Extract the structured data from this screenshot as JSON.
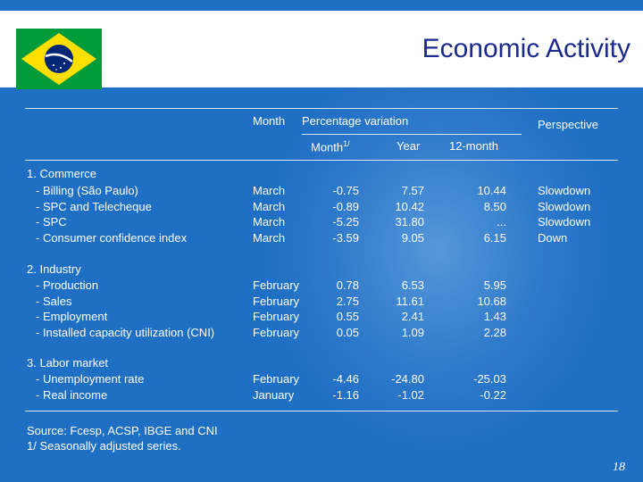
{
  "title": "Economic Activity",
  "headers": {
    "month": "Month",
    "pct": "Percentage variation",
    "perspective": "Perspective",
    "sub_month": "Month",
    "sub_month_sup": "1/",
    "sub_year": "Year",
    "sub_12m": "12-month"
  },
  "sections": [
    {
      "title": "1. Commerce",
      "rows": [
        {
          "label": "- Billing (São Paulo)",
          "month": "March",
          "m": "-0.75",
          "y": "7.57",
          "t": "10.44",
          "p": "Slowdown"
        },
        {
          "label": "- SPC and Telecheque",
          "month": "March",
          "m": "-0.89",
          "y": "10.42",
          "t": "8.50",
          "p": "Slowdown"
        },
        {
          "label": "- SPC",
          "month": "March",
          "m": "-5.25",
          "y": "31.80",
          "t": "...",
          "p": "Slowdown"
        },
        {
          "label": "- Consumer confidence index",
          "month": "March",
          "m": "-3.59",
          "y": "9.05",
          "t": "6.15",
          "p": "Down"
        }
      ]
    },
    {
      "title": "2. Industry",
      "rows": [
        {
          "label": "- Production",
          "month": "February",
          "m": "0.78",
          "y": "6.53",
          "t": "5.95",
          "p": ""
        },
        {
          "label": "- Sales",
          "month": "February",
          "m": "2.75",
          "y": "11.61",
          "t": "10.68",
          "p": ""
        },
        {
          "label": "- Employment",
          "month": "February",
          "m": "0.55",
          "y": "2.41",
          "t": "1.43",
          "p": ""
        },
        {
          "label": "- Installed capacity utilization (CNI)",
          "month": "February",
          "m": "0.05",
          "y": "1.09",
          "t": "2.28",
          "p": ""
        }
      ]
    },
    {
      "title": "3. Labor market",
      "rows": [
        {
          "label": "- Unemployment rate",
          "month": "February",
          "m": "-4.46",
          "y": "-24.80",
          "t": "-25.03",
          "p": ""
        },
        {
          "label": "- Real income",
          "month": "January",
          "m": "-1.16",
          "y": "-1.02",
          "t": "-0.22",
          "p": ""
        }
      ]
    }
  ],
  "footer": {
    "source": "Source: Fcesp, ACSP, IBGE and CNI",
    "note": "1/ Seasonally adjusted series."
  },
  "page_number": "18",
  "colors": {
    "background": "#1f6fc4",
    "title": "#1b2a8c",
    "flag_green": "#009c3b",
    "flag_yellow": "#ffdf00",
    "flag_blue": "#002776"
  }
}
